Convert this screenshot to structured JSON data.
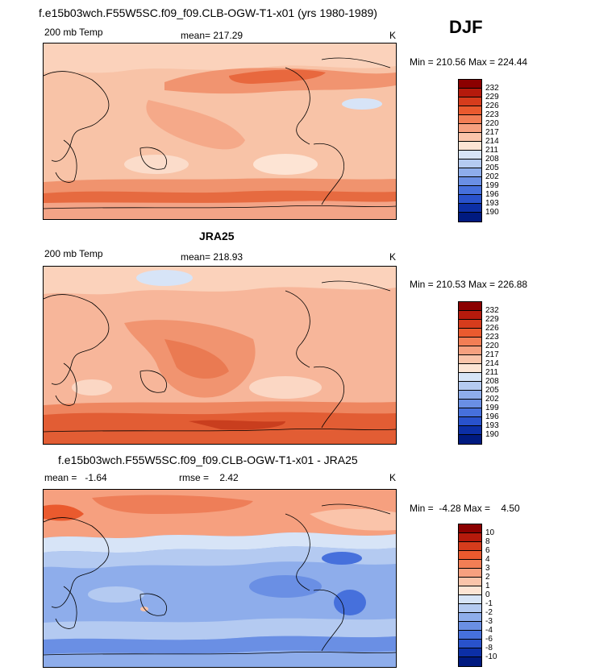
{
  "season": "DJF",
  "panels": [
    {
      "title": "f.e15b03wch.F55W5SC.f09_f09.CLB-OGW-T1-x01 (yrs 1980-1989)",
      "left_label": "200 mb Temp",
      "center_label": "mean= 217.29",
      "right_label": "K",
      "minmax": "Min = 210.56 Max = 224.44"
    },
    {
      "title": "JRA25",
      "left_label": "200 mb Temp",
      "center_label": "mean= 218.93",
      "right_label": "K",
      "minmax": "Min = 210.53 Max = 226.88"
    },
    {
      "title": "f.e15b03wch.F55W5SC.f09_f09.CLB-OGW-T1-x01 - JRA25",
      "left_label": "mean =   -1.64",
      "center_label": "rmse =    2.42",
      "right_label": "K",
      "minmax": "Min =  -4.28 Max =    4.50"
    }
  ],
  "colorbar_abs": {
    "labels": [
      "232",
      "229",
      "226",
      "223",
      "220",
      "217",
      "214",
      "211",
      "208",
      "205",
      "202",
      "199",
      "196",
      "193",
      "190"
    ],
    "colors": [
      "#8b0000",
      "#b51a0c",
      "#d63c1c",
      "#ea5a2e",
      "#f27e55",
      "#f6a07f",
      "#fac4aa",
      "#fde4d4",
      "#d7e4f7",
      "#b4caf1",
      "#8eadeb",
      "#6a8fe4",
      "#4670dc",
      "#2952cc",
      "#0c2fa6",
      "#001a80"
    ]
  },
  "colorbar_diff": {
    "labels": [
      "10",
      "8",
      "6",
      "4",
      "3",
      "2",
      "1",
      "0",
      "-1",
      "-2",
      "-3",
      "-4",
      "-6",
      "-8",
      "-10"
    ],
    "colors": [
      "#8b0000",
      "#b51a0c",
      "#d63c1c",
      "#ea5a2e",
      "#f27e55",
      "#f6a07f",
      "#fac4aa",
      "#fde4d4",
      "#d7e4f7",
      "#b4caf1",
      "#8eadeb",
      "#6a8fe4",
      "#4670dc",
      "#2952cc",
      "#0c2fa6",
      "#001a80"
    ]
  }
}
